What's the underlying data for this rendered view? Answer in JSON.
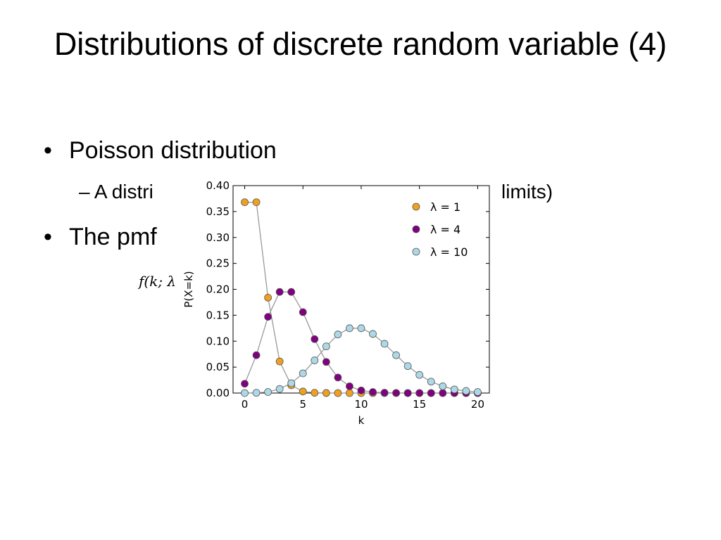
{
  "slide": {
    "title": "Distributions of discrete random variable (4)",
    "bullet1_marker": "•",
    "bullet1_text": "Poisson distribution",
    "sub_marker": "–",
    "sub_text": "A distri",
    "sub_text_tail": "limits)",
    "bullet2_marker": "•",
    "bullet2_text": "The pmf",
    "formula_text": "f(k; λ)"
  },
  "colors": {
    "lambda1": "#f0a020",
    "lambda4": "#800080",
    "lambda10": "#add8e6",
    "connector": "#999999"
  },
  "chart_data": {
    "type": "line",
    "xlabel": "k",
    "ylabel": "P(X=k)",
    "xlim": [
      -1,
      21
    ],
    "ylim": [
      0,
      0.4
    ],
    "x_ticks": [
      0,
      5,
      10,
      15,
      20
    ],
    "y_ticks": [
      0.0,
      0.05,
      0.1,
      0.15,
      0.2,
      0.25,
      0.3,
      0.35,
      0.4
    ],
    "y_tick_labels": [
      "0.00",
      "0.05",
      "0.10",
      "0.15",
      "0.20",
      "0.25",
      "0.30",
      "0.35",
      "0.40"
    ],
    "legend_position": "top-right",
    "x": [
      0,
      1,
      2,
      3,
      4,
      5,
      6,
      7,
      8,
      9,
      10,
      11,
      12,
      13,
      14,
      15,
      16,
      17,
      18,
      19,
      20
    ],
    "series": [
      {
        "name": "λ = 1",
        "color": "#f0a020",
        "values": [
          0.368,
          0.368,
          0.184,
          0.061,
          0.015,
          0.003,
          0.0005,
          0.0001,
          0,
          0,
          0,
          0,
          0,
          0,
          0,
          0,
          0,
          0,
          0,
          0,
          0
        ]
      },
      {
        "name": "λ = 4",
        "color": "#800080",
        "values": [
          0.018,
          0.073,
          0.147,
          0.195,
          0.195,
          0.156,
          0.104,
          0.06,
          0.03,
          0.013,
          0.005,
          0.002,
          0.0006,
          0.0002,
          0,
          0,
          0,
          0,
          0,
          0,
          0
        ]
      },
      {
        "name": "λ = 10",
        "color": "#add8e6",
        "values": [
          5e-05,
          0.0005,
          0.002,
          0.008,
          0.019,
          0.038,
          0.063,
          0.09,
          0.113,
          0.125,
          0.125,
          0.114,
          0.095,
          0.073,
          0.052,
          0.035,
          0.022,
          0.013,
          0.007,
          0.004,
          0.002
        ]
      }
    ]
  }
}
